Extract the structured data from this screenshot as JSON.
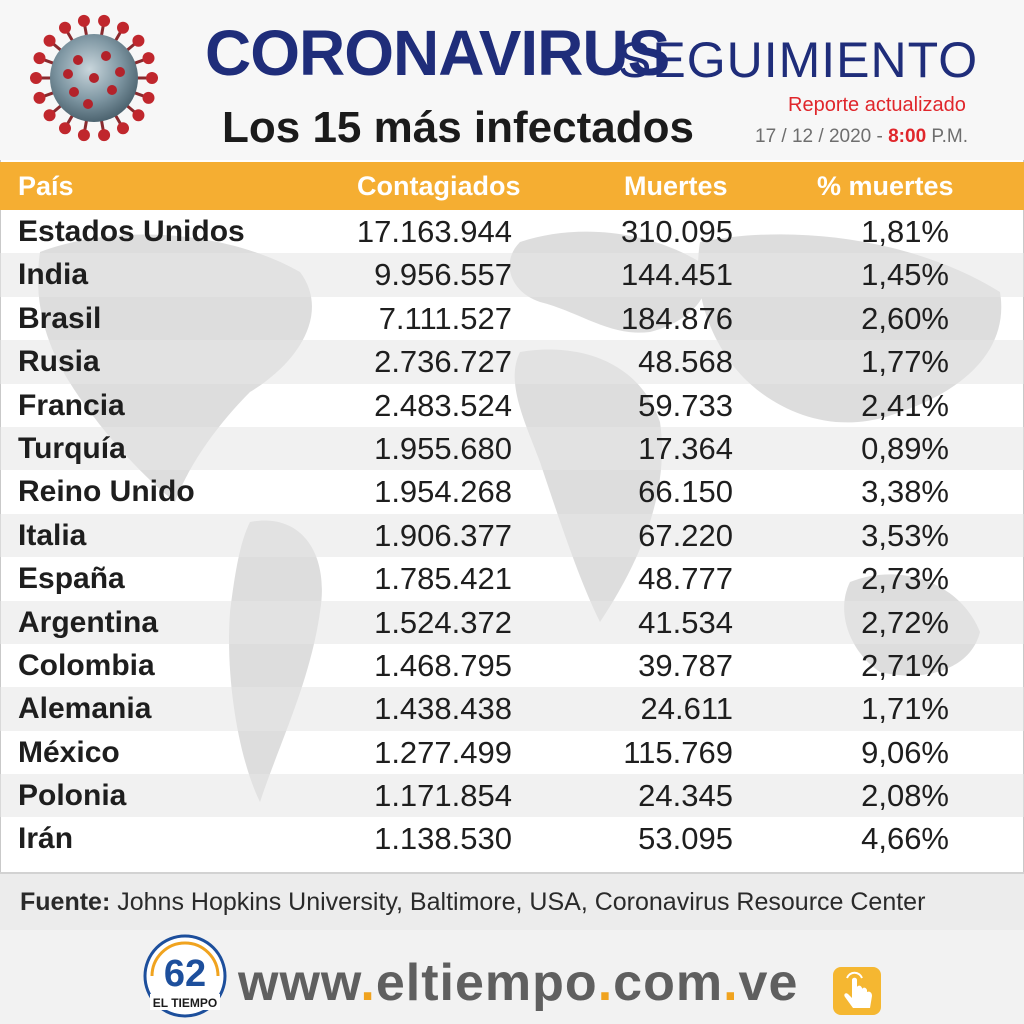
{
  "header": {
    "title_main": "CORONAVIRUS",
    "title_secondary": "SEGUIMIENTO",
    "subtitle": "Los 15 más infectados",
    "report_label": "Reporte actualizado",
    "report_date": "17 / 12 / 2020 -",
    "report_time": "8:00",
    "report_ampm": "P.M."
  },
  "table": {
    "columns": [
      "País",
      "Contagiados",
      "Muertes",
      "% muertes"
    ],
    "rows": [
      {
        "country": "Estados Unidos",
        "cases": "17.163.944",
        "deaths": "310.095",
        "pct": "1,81%"
      },
      {
        "country": "India",
        "cases": "9.956.557",
        "deaths": "144.451",
        "pct": "1,45%"
      },
      {
        "country": "Brasil",
        "cases": "7.111.527",
        "deaths": "184.876",
        "pct": "2,60%"
      },
      {
        "country": "Rusia",
        "cases": "2.736.727",
        "deaths": "48.568",
        "pct": "1,77%"
      },
      {
        "country": "Francia",
        "cases": "2.483.524",
        "deaths": "59.733",
        "pct": "2,41%"
      },
      {
        "country": "Turquía",
        "cases": "1.955.680",
        "deaths": "17.364",
        "pct": "0,89%"
      },
      {
        "country": "Reino Unido",
        "cases": "1.954.268",
        "deaths": "66.150",
        "pct": "3,38%"
      },
      {
        "country": "Italia",
        "cases": "1.906.377",
        "deaths": "67.220",
        "pct": "3,53%"
      },
      {
        "country": "España",
        "cases": "1.785.421",
        "deaths": "48.777",
        "pct": "2,73%"
      },
      {
        "country": "Argentina",
        "cases": "1.524.372",
        "deaths": "41.534",
        "pct": "2,72%"
      },
      {
        "country": "Colombia",
        "cases": "1.468.795",
        "deaths": "39.787",
        "pct": "2,71%"
      },
      {
        "country": "Alemania",
        "cases": "1.438.438",
        "deaths": "24.611",
        "pct": "1,71%"
      },
      {
        "country": "México",
        "cases": "1.277.499",
        "deaths": "115.769",
        "pct": "9,06%"
      },
      {
        "country": "Polonia",
        "cases": "1.171.854",
        "deaths": "24.345",
        "pct": "2,08%"
      },
      {
        "country": "Irán",
        "cases": "1.138.530",
        "deaths": "53.095",
        "pct": "4,66%"
      }
    ]
  },
  "source": {
    "label": "Fuente:",
    "text": "Johns Hopkins University, Baltimore, USA, Coronavirus Resource Center"
  },
  "footer": {
    "logo_number": "62",
    "logo_text": "EL TIEMPO",
    "site_parts": [
      "www",
      ".",
      "eltiempo",
      ".",
      "com",
      ".",
      "ve"
    ]
  },
  "colors": {
    "title_blue": "#1f2d7a",
    "header_orange": "#f5ae32",
    "accent_red": "#e0262b",
    "site_gray": "#5f5f5f",
    "site_dot": "#f0a31f"
  },
  "icons": [
    "coronavirus-icon",
    "world-map-background",
    "el-tiempo-logo",
    "tap-hand-icon"
  ]
}
